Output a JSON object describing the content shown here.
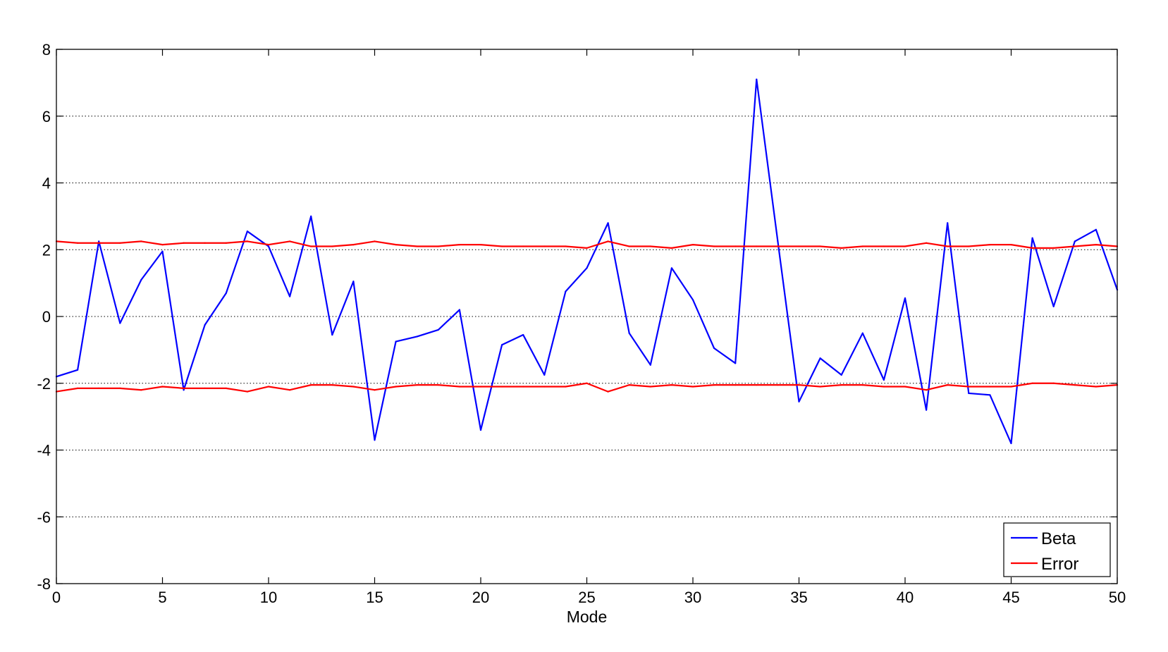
{
  "chart_data": {
    "type": "line",
    "title": "",
    "xlabel": "Mode",
    "ylabel": "",
    "xlim": [
      0,
      50
    ],
    "ylim": [
      -8,
      8
    ],
    "xticks": [
      0,
      5,
      10,
      15,
      20,
      25,
      30,
      35,
      40,
      45,
      50
    ],
    "yticks": [
      8,
      6,
      4,
      2,
      0,
      -2,
      -4,
      -6,
      -8
    ],
    "grid": "horizontal dotted",
    "legend_position": "bottom-right",
    "x": [
      0,
      1,
      2,
      3,
      4,
      5,
      6,
      7,
      8,
      9,
      10,
      11,
      12,
      13,
      14,
      15,
      16,
      17,
      18,
      19,
      20,
      21,
      22,
      23,
      24,
      25,
      26,
      27,
      28,
      29,
      30,
      31,
      32,
      33,
      34,
      35,
      36,
      37,
      38,
      39,
      40,
      41,
      42,
      43,
      44,
      45,
      46,
      47,
      48,
      49,
      50
    ],
    "series": [
      {
        "name": "Beta",
        "color": "#0000ff",
        "values": [
          -1.8,
          -1.6,
          2.25,
          -0.2,
          1.1,
          1.95,
          -2.2,
          -0.25,
          0.7,
          2.55,
          2.1,
          0.6,
          3.0,
          -0.55,
          1.05,
          -3.7,
          -0.75,
          -0.6,
          -0.4,
          0.2,
          -3.4,
          -0.85,
          -0.55,
          -1.75,
          0.75,
          1.45,
          2.8,
          -0.5,
          -1.45,
          1.45,
          0.5,
          -0.95,
          -1.4,
          7.1,
          2.25,
          -2.55,
          -1.25,
          -1.75,
          -0.5,
          -1.9,
          0.55,
          -2.8,
          2.8,
          -2.3,
          -2.35,
          -3.8,
          2.35,
          0.3,
          2.25,
          2.6,
          0.8
        ]
      },
      {
        "name": "Error",
        "color": "#ff0000",
        "values": [
          2.25,
          2.2,
          2.2,
          2.2,
          2.25,
          2.15,
          2.2,
          2.2,
          2.2,
          2.25,
          2.15,
          2.25,
          2.1,
          2.1,
          2.15,
          2.25,
          2.15,
          2.1,
          2.1,
          2.15,
          2.15,
          2.1,
          2.1,
          2.1,
          2.1,
          2.05,
          2.25,
          2.1,
          2.1,
          2.05,
          2.15,
          2.1,
          2.1,
          2.1,
          2.1,
          2.1,
          2.1,
          2.05,
          2.1,
          2.1,
          2.1,
          2.2,
          2.1,
          2.1,
          2.15,
          2.15,
          2.05,
          2.05,
          2.1,
          2.15,
          2.1
        ]
      },
      {
        "name": "",
        "color": "#ff0000",
        "values": [
          -2.25,
          -2.15,
          -2.15,
          -2.15,
          -2.2,
          -2.1,
          -2.15,
          -2.15,
          -2.15,
          -2.25,
          -2.1,
          -2.2,
          -2.05,
          -2.05,
          -2.1,
          -2.2,
          -2.1,
          -2.05,
          -2.05,
          -2.1,
          -2.1,
          -2.1,
          -2.1,
          -2.1,
          -2.1,
          -2.0,
          -2.25,
          -2.05,
          -2.1,
          -2.05,
          -2.1,
          -2.05,
          -2.05,
          -2.05,
          -2.05,
          -2.05,
          -2.1,
          -2.05,
          -2.05,
          -2.1,
          -2.1,
          -2.2,
          -2.05,
          -2.1,
          -2.1,
          -2.1,
          -2.0,
          -2.0,
          -2.05,
          -2.1,
          -2.05
        ]
      }
    ],
    "legend": [
      {
        "label": "Beta",
        "color": "#0000ff"
      },
      {
        "label": "Error",
        "color": "#ff0000"
      }
    ]
  }
}
